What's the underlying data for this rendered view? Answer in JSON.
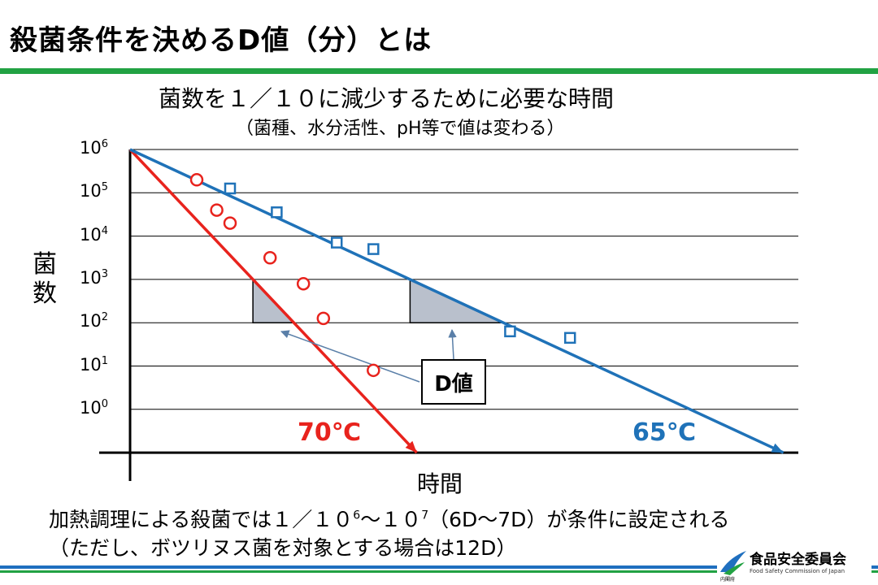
{
  "slide": {
    "title": "殺菌条件を決めるD値（分）とは",
    "subtitle": "菌数を１／１０に減少するために必要な時間",
    "subtitle_note": "（菌種、水分活性、pH等で値は変わる）",
    "note_line1_a": "加熱調理による殺菌では１／１０",
    "note_line1_sup1": "6",
    "note_line1_b": "～１０",
    "note_line1_sup2": "7",
    "note_line1_c": "（6D～7D）が条件に設定される",
    "note_line2": "（ただし、ボツリヌス菌を対象とする場合は12D）"
  },
  "logo": {
    "name": "食品安全委員会",
    "english": "Food Safety Commission of Japan",
    "agency": "内閣府"
  },
  "colors": {
    "red_series": "#e8231d",
    "blue_series": "#1f72b8",
    "triangle_fill": "#b9c0cc",
    "green_bar": "#22a243",
    "blue_bar": "#1f6fbf"
  },
  "chart_data": {
    "type": "line",
    "xlabel": "時間",
    "ylabel": "菌数",
    "y_scale": "log",
    "y_ticks": [
      {
        "base": "10",
        "exp": "6"
      },
      {
        "base": "10",
        "exp": "5"
      },
      {
        "base": "10",
        "exp": "4"
      },
      {
        "base": "10",
        "exp": "3"
      },
      {
        "base": "10",
        "exp": "2"
      },
      {
        "base": "10",
        "exp": "1"
      },
      {
        "base": "10",
        "exp": "0"
      }
    ],
    "ylim_log10": [
      -1,
      6
    ],
    "xlim": [
      0,
      10
    ],
    "grid": true,
    "series": [
      {
        "name": "70℃",
        "marker": "circle",
        "color": "#e8231d",
        "line": {
          "x": [
            0,
            4.3
          ],
          "y_log10": [
            6,
            -1
          ]
        },
        "points": [
          {
            "x": 1.0,
            "y_log10": 5.3
          },
          {
            "x": 1.3,
            "y_log10": 4.6
          },
          {
            "x": 1.5,
            "y_log10": 4.3
          },
          {
            "x": 2.1,
            "y_log10": 3.5
          },
          {
            "x": 2.6,
            "y_log10": 2.9
          },
          {
            "x": 2.9,
            "y_log10": 2.1
          },
          {
            "x": 3.65,
            "y_log10": 0.9
          }
        ]
      },
      {
        "name": "65℃",
        "marker": "square",
        "color": "#1f72b8",
        "line": {
          "x": [
            0,
            9.8
          ],
          "y_log10": [
            6,
            -1
          ]
        },
        "points": [
          {
            "x": 1.5,
            "y_log10": 5.1
          },
          {
            "x": 2.2,
            "y_log10": 4.55
          },
          {
            "x": 3.1,
            "y_log10": 3.85
          },
          {
            "x": 3.65,
            "y_log10": 3.7
          },
          {
            "x": 5.7,
            "y_log10": 1.8
          },
          {
            "x": 6.6,
            "y_log10": 1.65
          }
        ]
      }
    ],
    "d_value_triangles": [
      {
        "series": "70℃",
        "from_log10": 3,
        "to_log10": 2
      },
      {
        "series": "65℃",
        "from_log10": 3,
        "to_log10": 2
      }
    ],
    "annotation": "D値"
  }
}
